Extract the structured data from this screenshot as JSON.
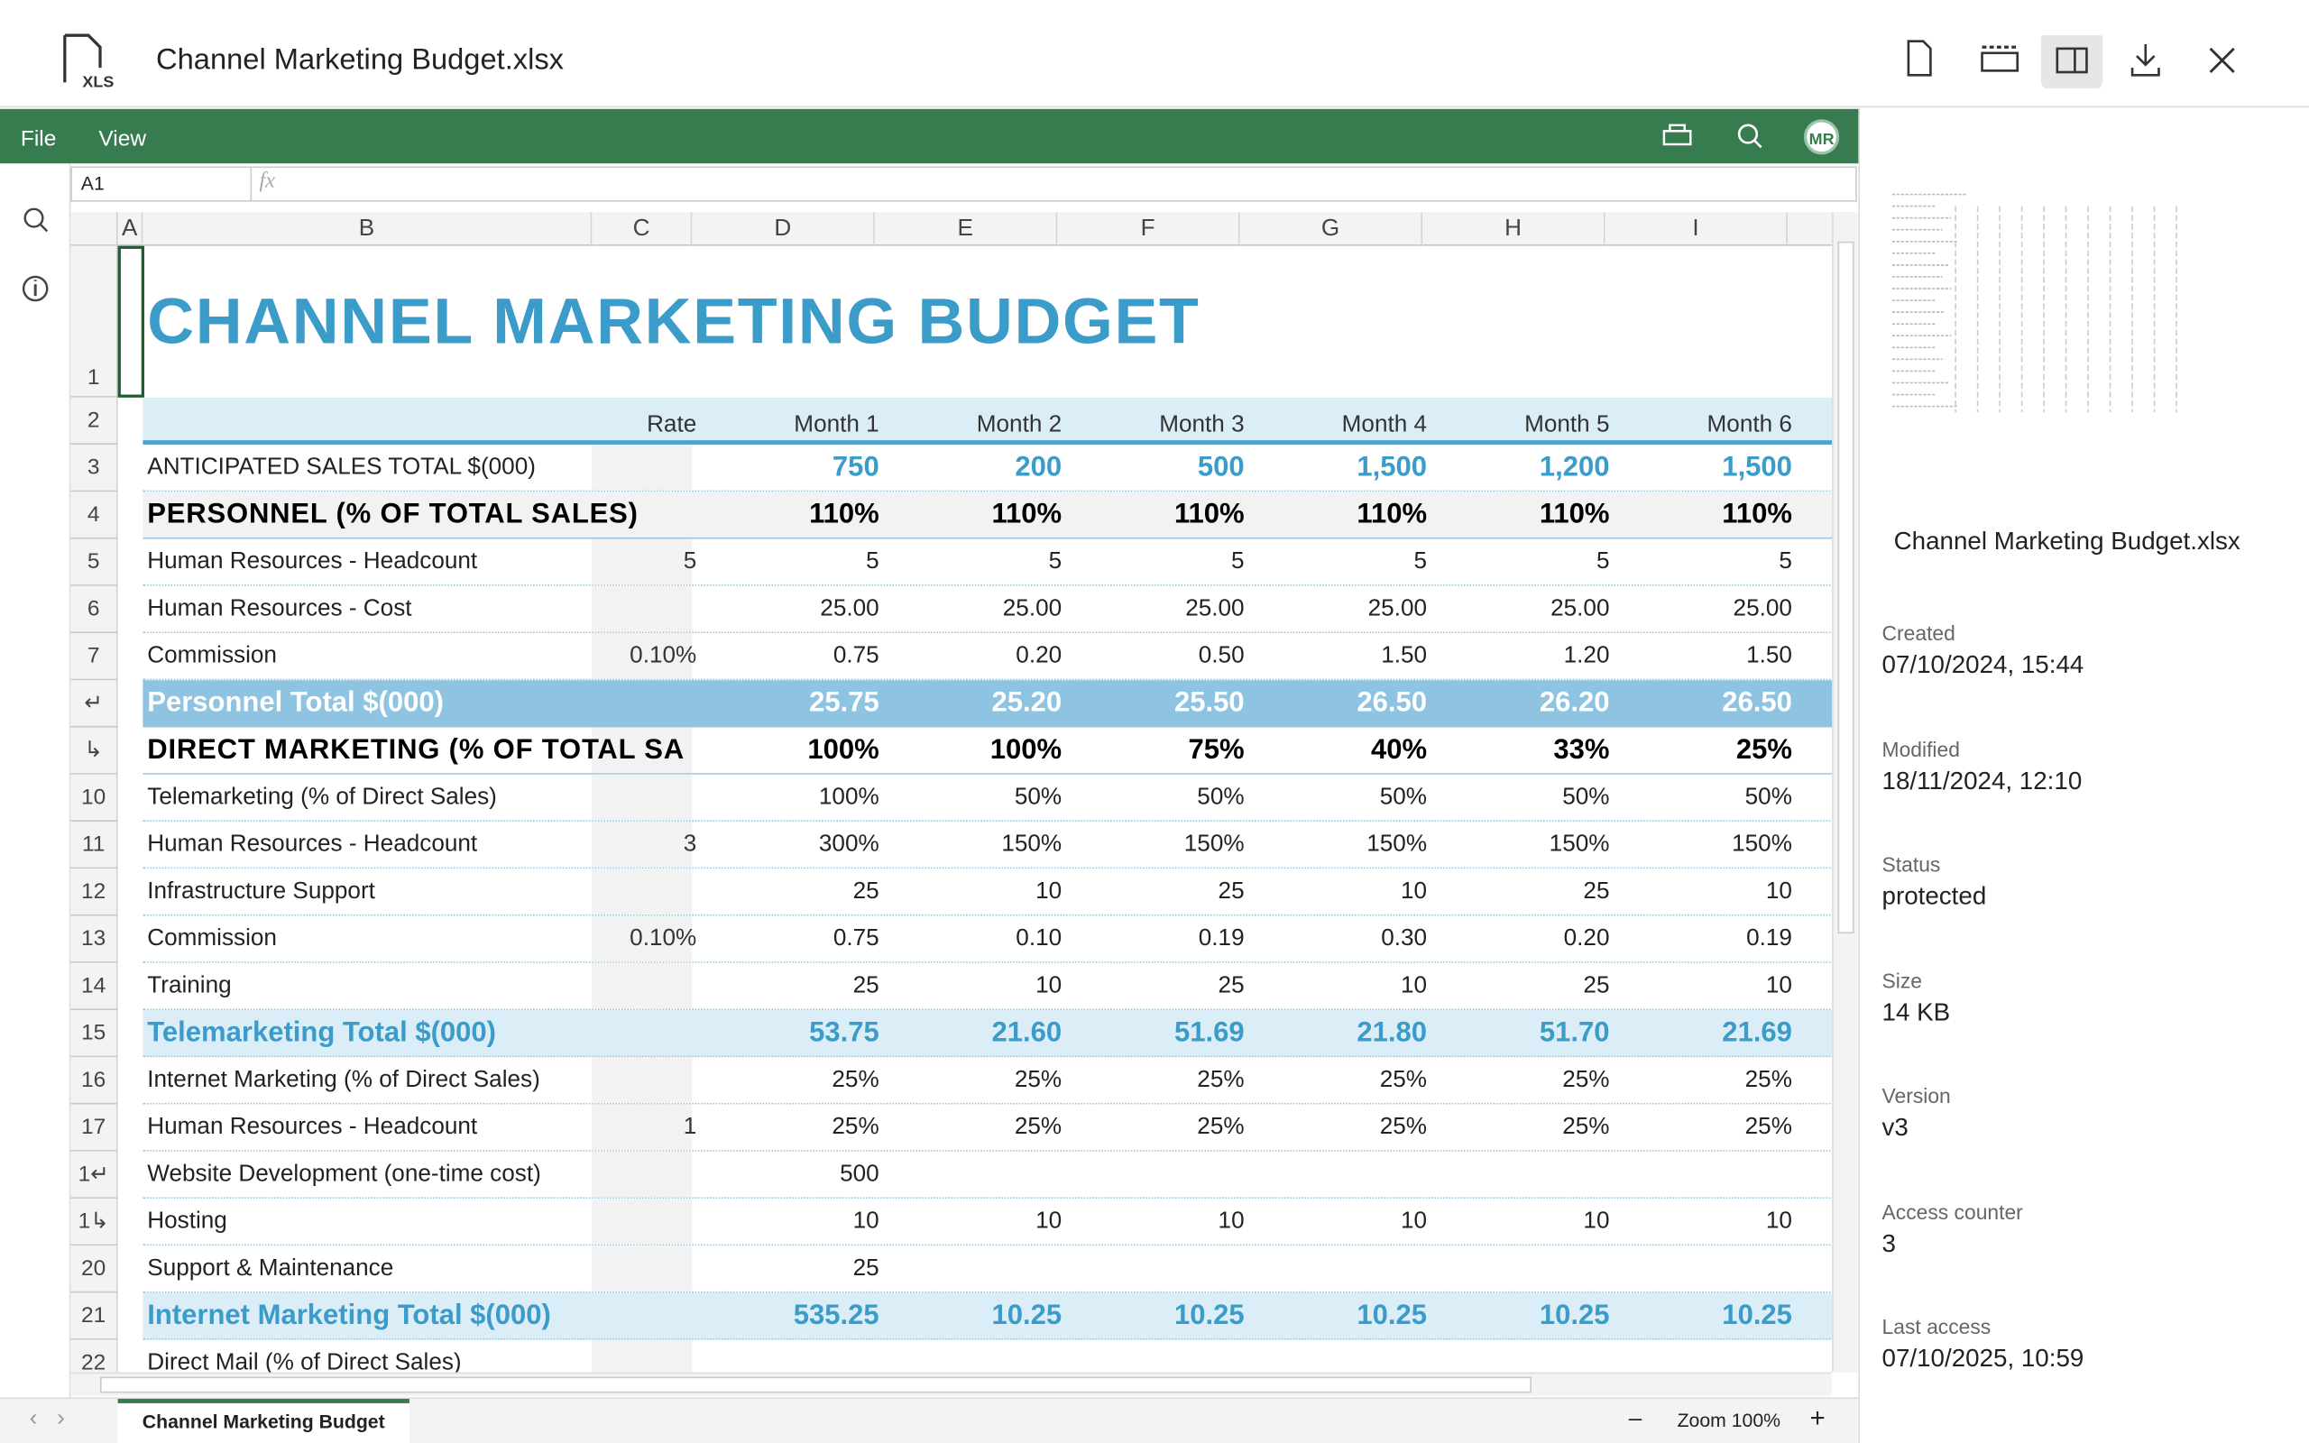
{
  "header": {
    "title": "Channel Marketing Budget.xlsx",
    "file_icon": "XLS"
  },
  "menu": [
    "File",
    "View"
  ],
  "avatar": "MR",
  "formula_bar": {
    "cell": "A1",
    "fx": "fx"
  },
  "columns": [
    "A",
    "B",
    "C",
    "D",
    "E",
    "F",
    "G",
    "H",
    "I"
  ],
  "sheet": {
    "title_row": "1",
    "title": "CHANNEL MARKETING BUDGET",
    "rows": [
      {
        "num": "2",
        "label": null,
        "rate": "Rate",
        "values": [
          "Month 1",
          "Month 2",
          "Month 3",
          "Month 4",
          "Month 5",
          "Month 6"
        ]
      },
      {
        "num": "3",
        "label": "ANTICIPATED SALES TOTAL $(000)",
        "rate": null,
        "values": [
          "750",
          "200",
          "500",
          "1,500",
          "1,200",
          "1,500"
        ]
      },
      {
        "num": "4",
        "label": "PERSONNEL (% OF TOTAL SALES)",
        "rate": null,
        "values": [
          "110%",
          "110%",
          "110%",
          "110%",
          "110%",
          "110%"
        ]
      },
      {
        "num": "5",
        "label": "Human Resources - Headcount",
        "rate": "5",
        "values": [
          "5",
          "5",
          "5",
          "5",
          "5",
          "5"
        ]
      },
      {
        "num": "6",
        "label": "Human Resources - Cost",
        "rate": null,
        "values": [
          "25.00",
          "25.00",
          "25.00",
          "25.00",
          "25.00",
          "25.00"
        ]
      },
      {
        "num": "7",
        "label": "Commission",
        "rate": "0.10%",
        "values": [
          "0.75",
          "0.20",
          "0.50",
          "1.50",
          "1.20",
          "1.50"
        ]
      },
      {
        "num": "↵",
        "label": "Personnel Total $(000)",
        "rate": null,
        "values": [
          "25.75",
          "25.20",
          "25.50",
          "26.50",
          "26.20",
          "26.50"
        ]
      },
      {
        "num": "↳",
        "label": "DIRECT MARKETING (% OF TOTAL SA",
        "rate": null,
        "values": [
          "100%",
          "100%",
          "75%",
          "40%",
          "33%",
          "25%"
        ]
      },
      {
        "num": "10",
        "label": "Telemarketing (% of Direct Sales)",
        "rate": null,
        "values": [
          "100%",
          "50%",
          "50%",
          "50%",
          "50%",
          "50%"
        ]
      },
      {
        "num": "11",
        "label": "Human Resources - Headcount",
        "rate": "3",
        "values": [
          "300%",
          "150%",
          "150%",
          "150%",
          "150%",
          "150%"
        ]
      },
      {
        "num": "12",
        "label": "Infrastructure Support",
        "rate": null,
        "values": [
          "25",
          "10",
          "25",
          "10",
          "25",
          "10"
        ]
      },
      {
        "num": "13",
        "label": "Commission",
        "rate": "0.10%",
        "values": [
          "0.75",
          "0.10",
          "0.19",
          "0.30",
          "0.20",
          "0.19"
        ]
      },
      {
        "num": "14",
        "label": "Training",
        "rate": null,
        "values": [
          "25",
          "10",
          "25",
          "10",
          "25",
          "10"
        ]
      },
      {
        "num": "15",
        "label": "Telemarketing Total $(000)",
        "rate": null,
        "values": [
          "53.75",
          "21.60",
          "51.69",
          "21.80",
          "51.70",
          "21.69"
        ]
      },
      {
        "num": "16",
        "label": "Internet Marketing (% of Direct Sales)",
        "rate": null,
        "values": [
          "25%",
          "25%",
          "25%",
          "25%",
          "25%",
          "25%"
        ]
      },
      {
        "num": "17",
        "label": "Human Resources - Headcount",
        "rate": "1",
        "values": [
          "25%",
          "25%",
          "25%",
          "25%",
          "25%",
          "25%"
        ]
      },
      {
        "num": "1↵",
        "label": "Website Development (one-time cost)",
        "rate": null,
        "values": [
          "500",
          null,
          null,
          null,
          null,
          null
        ]
      },
      {
        "num": "1↳",
        "label": "Hosting",
        "rate": null,
        "values": [
          "10",
          "10",
          "10",
          "10",
          "10",
          "10"
        ]
      },
      {
        "num": "20",
        "label": "Support & Maintenance",
        "rate": null,
        "values": [
          "25",
          null,
          null,
          null,
          null,
          null
        ]
      },
      {
        "num": "21",
        "label": "Internet Marketing Total $(000)",
        "rate": null,
        "values": [
          "535.25",
          "10.25",
          "10.25",
          "10.25",
          "10.25",
          "10.25"
        ]
      },
      {
        "num": "22",
        "label": "Direct Mail (% of Direct Sales)",
        "rate": null,
        "values": [
          null,
          null,
          null,
          null,
          null,
          null
        ]
      }
    ]
  },
  "tab": "Channel Marketing Budget",
  "zoom": "Zoom 100%",
  "panel": {
    "name": "Channel Marketing Budget.xlsx",
    "fields": [
      {
        "label": "Created",
        "value": "07/10/2024, 15:44"
      },
      {
        "label": "Modified",
        "value": "18/11/2024, 12:10"
      },
      {
        "label": "Status",
        "value": "protected"
      },
      {
        "label": "Size",
        "value": "14 KB"
      },
      {
        "label": "Version",
        "value": "v3"
      },
      {
        "label": "Access counter",
        "value": "3"
      },
      {
        "label": "Last access",
        "value": "07/10/2025, 10:59"
      }
    ]
  }
}
